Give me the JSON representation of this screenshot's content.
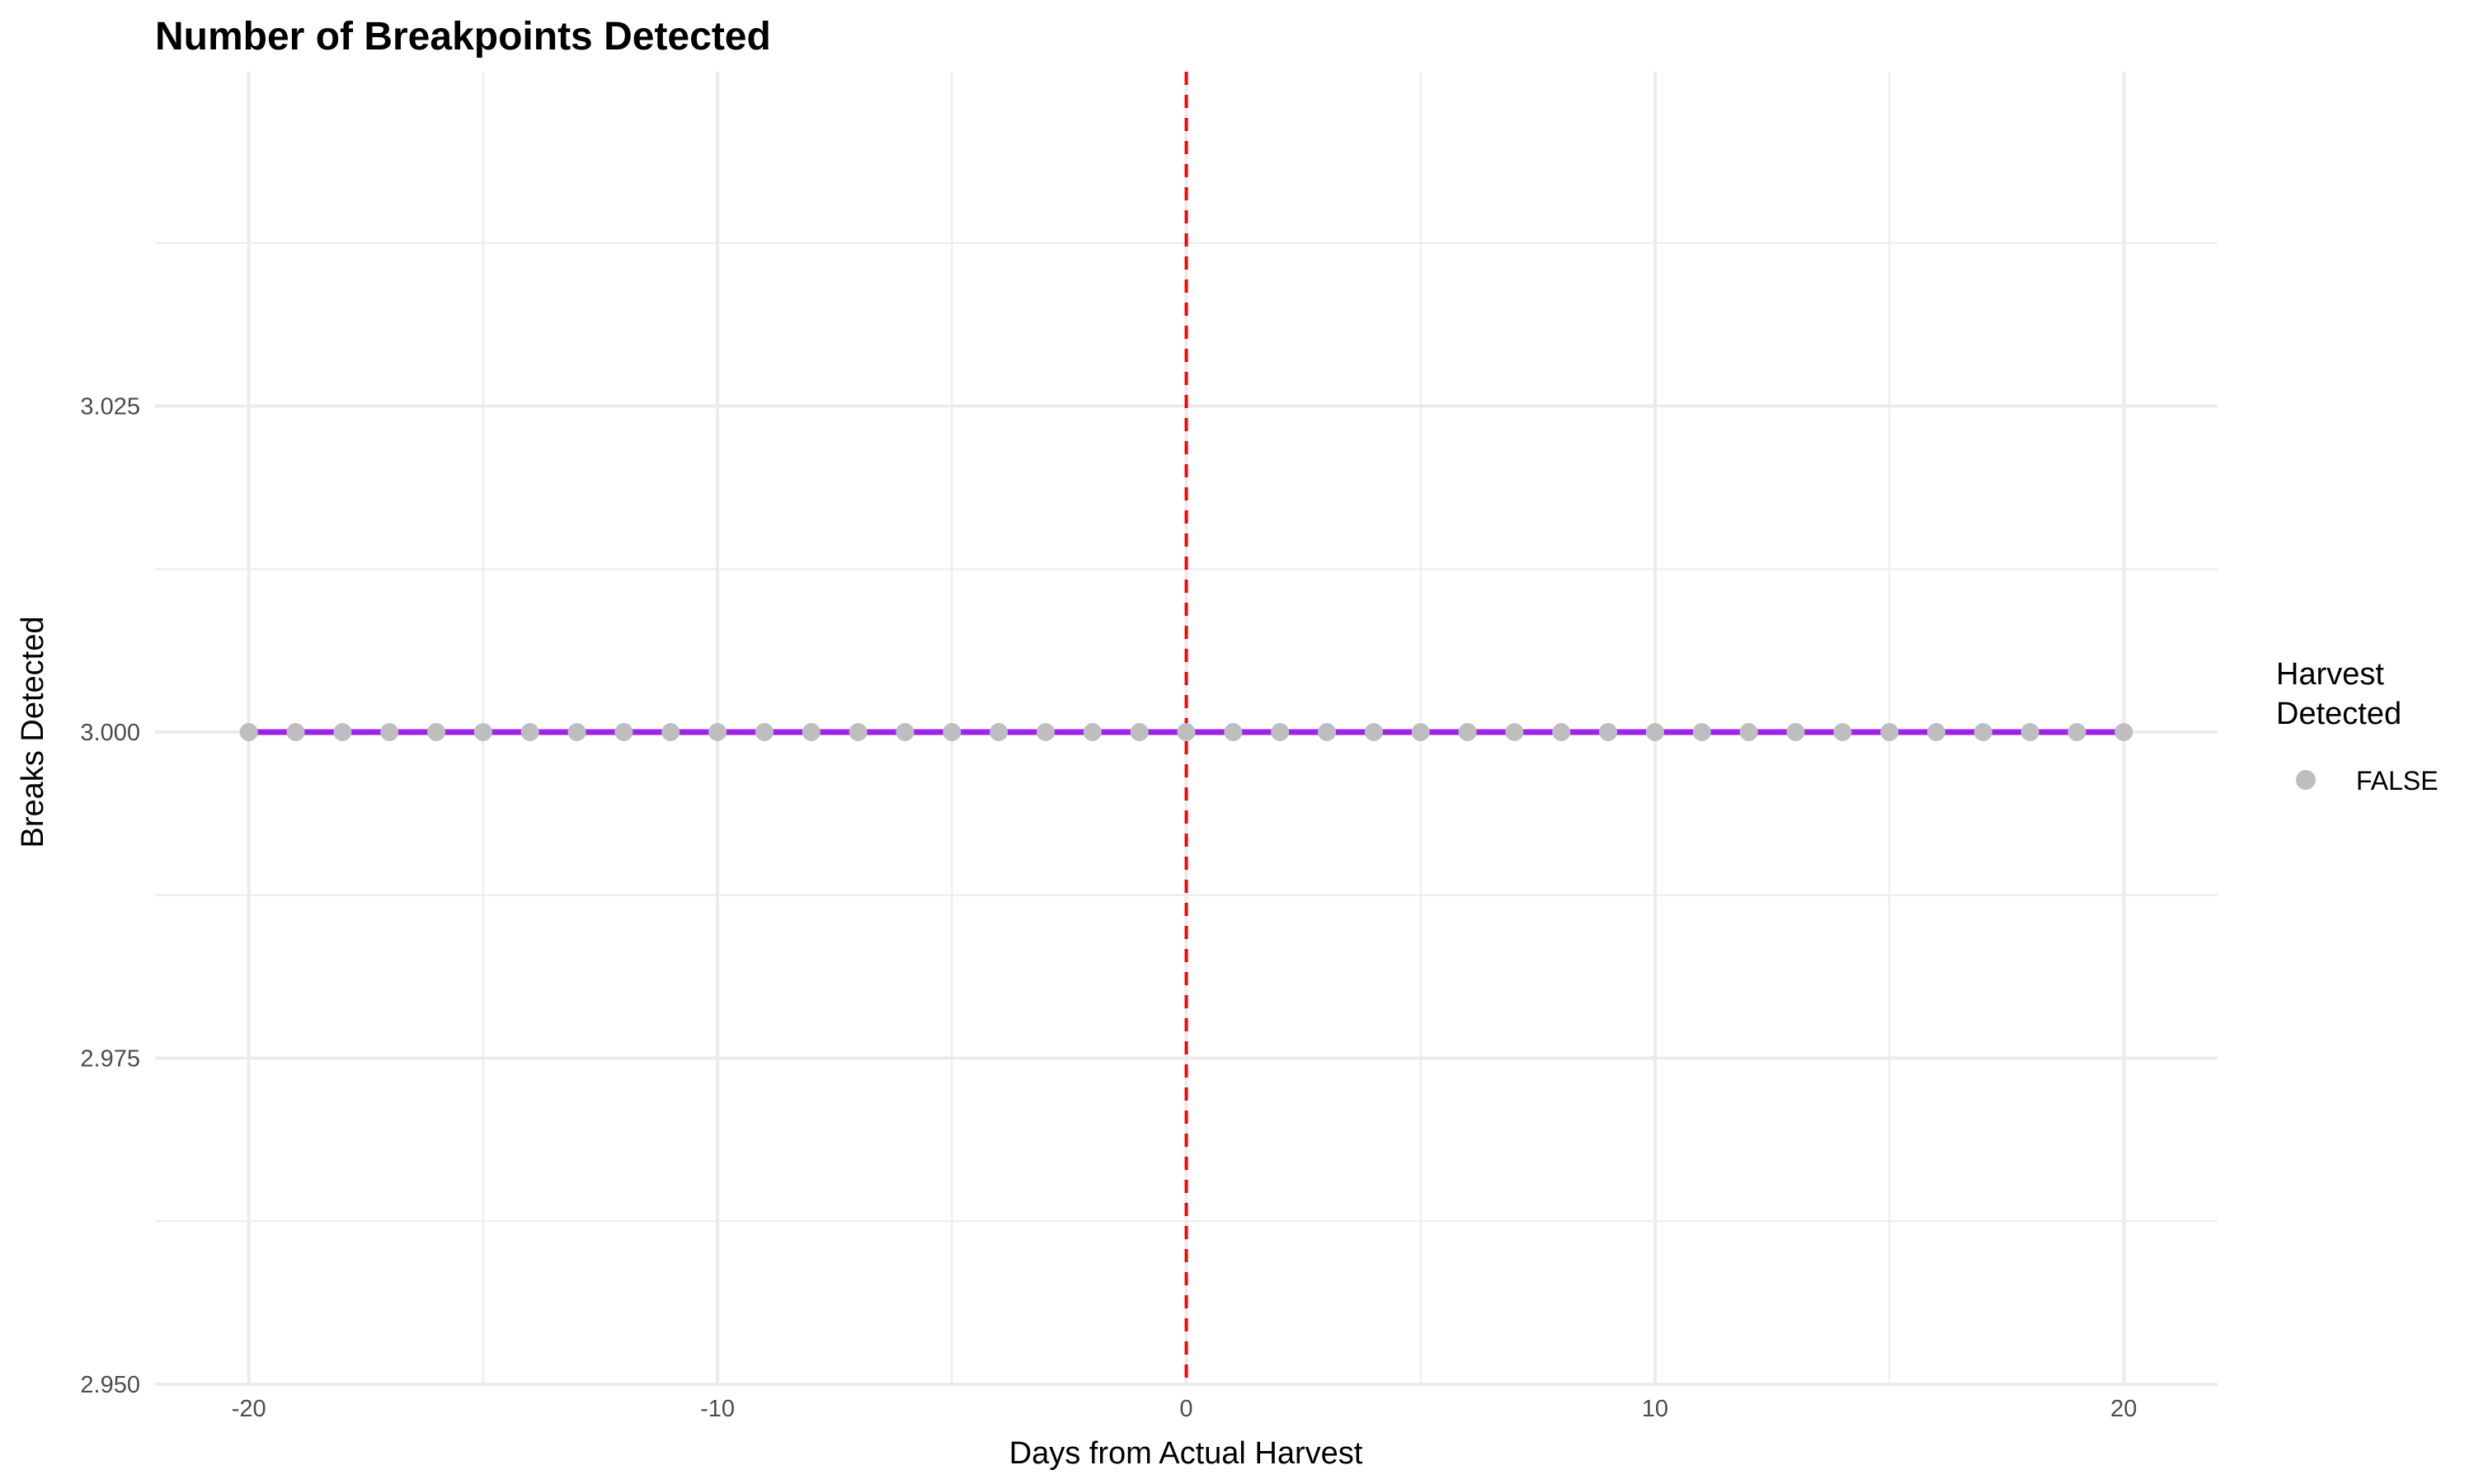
{
  "chart_data": {
    "type": "line",
    "title": "Number of Breakpoints Detected",
    "xlabel": "Days from Actual Harvest",
    "ylabel": "Breaks Detected",
    "xlim": [
      -22,
      22
    ],
    "ylim": [
      2.95,
      3.05
    ],
    "x_ticks": [
      -20,
      -10,
      0,
      10,
      20
    ],
    "x_tick_labels": [
      "-20",
      "-10",
      "0",
      "10",
      "20"
    ],
    "y_ticks": [
      2.95,
      2.975,
      3.0,
      3.025
    ],
    "y_tick_labels": [
      "2.950",
      "2.975",
      "3.000",
      "3.025"
    ],
    "grid": true,
    "line_color": "#A020F0",
    "point_color": "#BEBEBE",
    "reference_line": {
      "x": 0,
      "color": "#FF0000",
      "style": "dashed"
    },
    "x": [
      -20,
      -19,
      -18,
      -17,
      -16,
      -15,
      -14,
      -13,
      -12,
      -11,
      -10,
      -9,
      -8,
      -7,
      -6,
      -5,
      -4,
      -3,
      -2,
      -1,
      0,
      1,
      2,
      3,
      4,
      5,
      6,
      7,
      8,
      9,
      10,
      11,
      12,
      13,
      14,
      15,
      16,
      17,
      18,
      19,
      20
    ],
    "y": [
      3,
      3,
      3,
      3,
      3,
      3,
      3,
      3,
      3,
      3,
      3,
      3,
      3,
      3,
      3,
      3,
      3,
      3,
      3,
      3,
      3,
      3,
      3,
      3,
      3,
      3,
      3,
      3,
      3,
      3,
      3,
      3,
      3,
      3,
      3,
      3,
      3,
      3,
      3,
      3,
      3
    ],
    "legend": {
      "title": "Harvest Detected",
      "title_lines": [
        "Harvest",
        "Detected"
      ],
      "placement": "right",
      "entries": [
        {
          "label": "FALSE",
          "color": "#BEBEBE"
        }
      ]
    }
  }
}
